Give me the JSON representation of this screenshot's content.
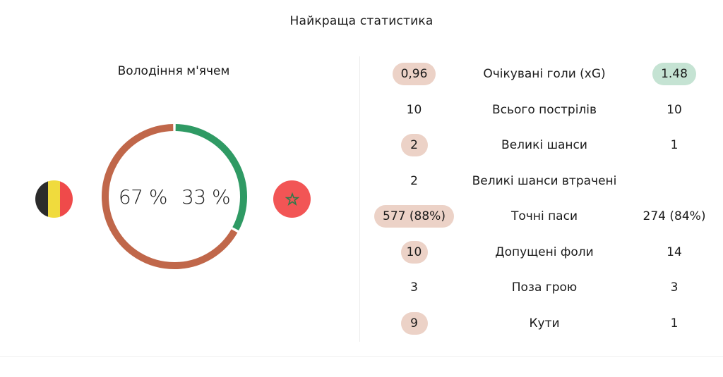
{
  "title": "Найкраща статистика",
  "possession": {
    "title": "Володіння м'ячем",
    "home_value": 67,
    "away_value": 33,
    "home_label": "67 %",
    "away_label": "33 %",
    "home_color": "#c0674a",
    "away_color": "#2f9a64"
  },
  "teams": {
    "home": {
      "flag_icon": "belgium-flag-icon",
      "flag_colors": [
        "#2b2b2b",
        "#f0db3d",
        "#ef4a4a"
      ]
    },
    "away": {
      "flag_icon": "morocco-flag-icon",
      "flag_colors": [
        "#f25555",
        "#2d7a4a"
      ]
    }
  },
  "highlight_colors": {
    "home": "#ecd2c7",
    "away": "#c5e3d3"
  },
  "stats": [
    {
      "home": "0,96",
      "label": "Очікувані голи (xG)",
      "away": "1.48",
      "highlight": "both"
    },
    {
      "home": "10",
      "label": "Всього пострілів",
      "away": "10",
      "highlight": "none"
    },
    {
      "home": "2",
      "label": "Великі шанси",
      "away": "1",
      "highlight": "home"
    },
    {
      "home": "2",
      "label": "Великі шанси втрачені",
      "away": "",
      "highlight": "none"
    },
    {
      "home": "577 (88%)",
      "label": "Точні паси",
      "away": "274 (84%)",
      "highlight": "home"
    },
    {
      "home": "10",
      "label": "Допущені фоли",
      "away": "14",
      "highlight": "home"
    },
    {
      "home": "3",
      "label": "Поза грою",
      "away": "3",
      "highlight": "none"
    },
    {
      "home": "9",
      "label": "Кути",
      "away": "1",
      "highlight": "home"
    }
  ]
}
